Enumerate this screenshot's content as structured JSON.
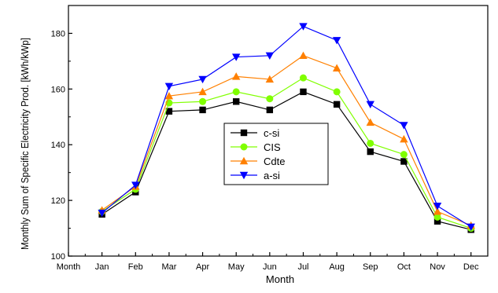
{
  "chart_data": {
    "type": "line",
    "xlabel": "Month",
    "ylabel": "Monthly Sum of Specific Electricity Prod. [kWh/kWp]",
    "categories": [
      "Month",
      "Jan",
      "Feb",
      "Mar",
      "Apr",
      "May",
      "Jun",
      "Jul",
      "Aug",
      "Sep",
      "Oct",
      "Nov",
      "Dec"
    ],
    "ylim": [
      100,
      190
    ],
    "yticks": [
      100,
      120,
      140,
      160,
      180
    ],
    "grid": false,
    "legend_position": "center",
    "series": [
      {
        "name": "c-si",
        "color": "#000000",
        "marker": "square",
        "values": [
          null,
          115,
          123,
          152,
          152.5,
          155.5,
          152.5,
          159,
          154.5,
          137.5,
          134,
          112.5,
          109.5
        ]
      },
      {
        "name": "CIS",
        "color": "#80ff00",
        "marker": "circle",
        "values": [
          null,
          116,
          124,
          155,
          155.5,
          159,
          156.5,
          164,
          159,
          140.5,
          136.5,
          114,
          110
        ]
      },
      {
        "name": "Cdte",
        "color": "#ff8000",
        "marker": "triangle-up",
        "values": [
          null,
          116.5,
          125,
          157.5,
          159,
          164.5,
          163.5,
          172,
          167.5,
          148,
          142,
          116,
          111
        ]
      },
      {
        "name": "a-si",
        "color": "#0000ff",
        "marker": "triangle-down",
        "values": [
          null,
          115.5,
          125.5,
          161,
          163.5,
          171.5,
          172,
          182.5,
          177.5,
          154.5,
          147,
          118,
          110.5
        ]
      }
    ]
  }
}
